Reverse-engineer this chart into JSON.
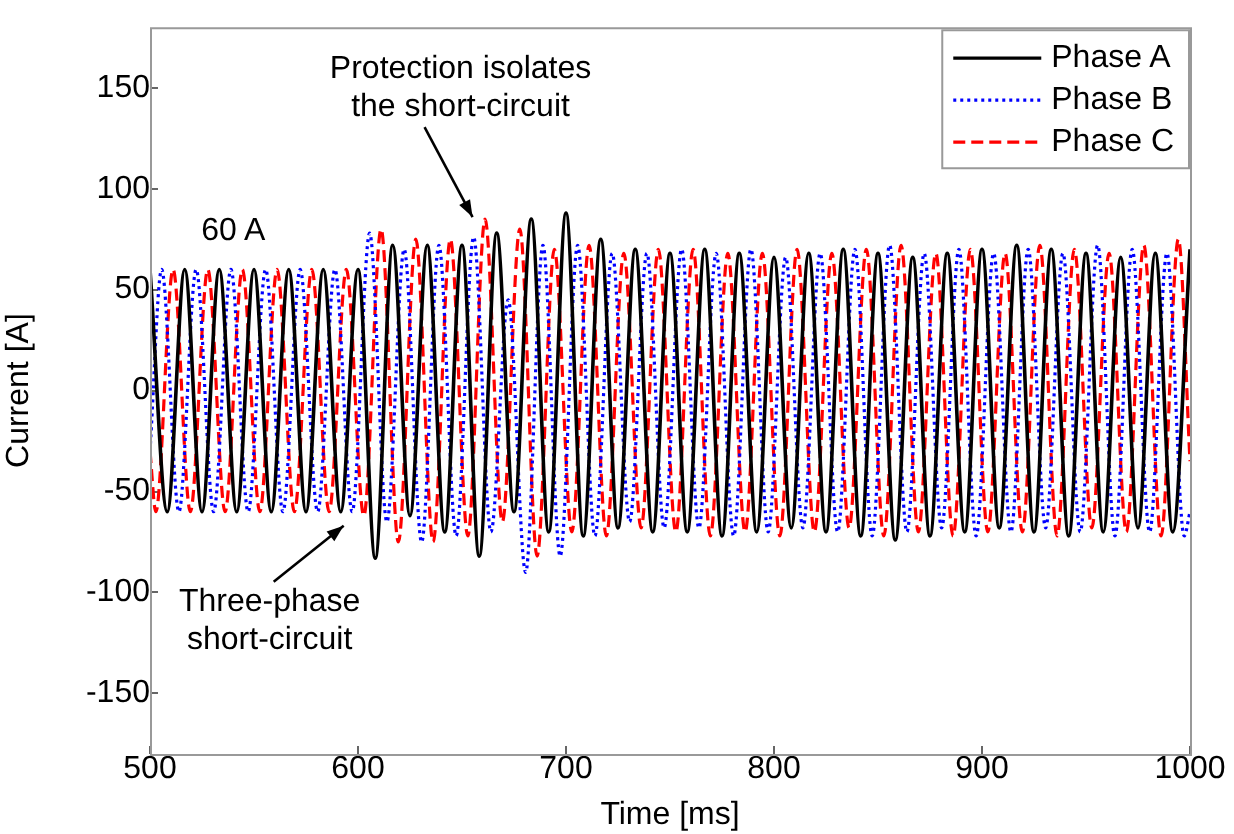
{
  "chart_data": {
    "type": "line",
    "xlabel": "Time [ms]",
    "ylabel": "Current [A]",
    "xlim": [
      500,
      1000
    ],
    "xticks": [
      500,
      600,
      700,
      800,
      900,
      1000
    ],
    "ylim": [
      -180,
      180
    ],
    "yticks": [
      -150,
      -100,
      -50,
      0,
      50,
      100,
      150
    ],
    "grid": false,
    "legend": "top right",
    "marker": "none",
    "annotations": [
      "60 A",
      {
        "text": "Protection isolates\nthe short-circuit",
        "x": 657,
        "y": 82
      },
      {
        "text": "Three-phase\nshort-circuit",
        "x": 596,
        "y": -63
      }
    ],
    "series": [
      {
        "name": "Phase A",
        "color": "#000000",
        "line_style": "solid",
        "x": [
          500,
          508.3,
          516.7,
          525,
          533.3,
          541.7,
          550,
          558.3,
          566.7,
          575,
          583.3,
          591.7,
          600,
          608.3,
          616.7,
          625,
          633.3,
          641.7,
          650,
          658.3,
          666.7,
          675,
          683.3,
          691.7,
          700,
          708.3,
          716.7,
          725,
          733.3,
          741.7,
          750,
          758.3,
          766.7,
          775,
          783.3,
          791.7,
          800,
          808.3,
          816.7,
          825,
          833.3,
          841.7,
          850,
          858.3,
          866.7,
          875,
          883.3,
          891.7,
          900,
          908.3,
          916.7,
          925,
          933.3,
          941.7,
          950,
          958.3,
          966.7,
          975,
          983.3,
          991.7,
          1000
        ],
        "values": [
          60,
          -60,
          60,
          -60,
          60,
          -60,
          60,
          -60,
          60,
          -60,
          60,
          -60,
          60,
          -83,
          72,
          -62,
          72,
          -70,
          72,
          -82,
          78,
          -60,
          85,
          -70,
          88,
          -72,
          75,
          -68,
          70,
          -70,
          68,
          -70,
          70,
          -72,
          68,
          -70,
          66,
          -68,
          68,
          -70,
          70,
          -72,
          68,
          -74,
          66,
          -72,
          68,
          -70,
          70,
          -68,
          72,
          -70,
          70,
          -72,
          68,
          -70,
          66,
          -68,
          68,
          -70,
          70
        ]
      },
      {
        "name": "Phase B",
        "color": "#0000ff",
        "line_style": "dotted",
        "x": [
          500,
          505.6,
          513.9,
          522.2,
          530.6,
          538.9,
          547.2,
          555.6,
          563.9,
          572.2,
          580.6,
          588.9,
          597.2,
          605.6,
          613.9,
          622.2,
          630.6,
          638.9,
          647.2,
          655.6,
          663.9,
          672.2,
          680.6,
          688.9,
          697.2,
          705.6,
          713.9,
          722.2,
          730.6,
          738.9,
          747.2,
          755.6,
          763.9,
          772.2,
          780.6,
          788.9,
          797.2,
          805.6,
          813.9,
          822.2,
          830.6,
          838.9,
          847.2,
          855.6,
          863.9,
          872.2,
          880.6,
          888.9,
          897.2,
          905.6,
          913.9,
          922.2,
          930.6,
          938.9,
          947.2,
          955.6,
          963.9,
          972.2,
          980.6,
          988.9,
          997.2,
          1000
        ],
        "values": [
          -30,
          60,
          -60,
          60,
          -60,
          60,
          -60,
          60,
          -60,
          60,
          -60,
          60,
          -60,
          78,
          -65,
          70,
          -75,
          72,
          -72,
          76,
          -70,
          45,
          -90,
          72,
          -82,
          72,
          -72,
          68,
          -65,
          68,
          -68,
          70,
          -68,
          68,
          -72,
          70,
          -70,
          66,
          -68,
          68,
          -70,
          70,
          -72,
          72,
          -70,
          68,
          -68,
          70,
          -72,
          68,
          -70,
          70,
          -68,
          68,
          -70,
          72,
          -72,
          70,
          -70,
          68,
          -72,
          -60
        ]
      },
      {
        "name": "Phase C",
        "color": "#ff0000",
        "line_style": "dashed",
        "x": [
          500,
          502.8,
          511.1,
          519.4,
          527.8,
          536.1,
          544.4,
          552.8,
          561.1,
          569.4,
          577.8,
          586.1,
          594.4,
          602.8,
          611.1,
          619.4,
          627.8,
          636.1,
          644.4,
          652.8,
          661.1,
          669.4,
          677.8,
          686.1,
          694.4,
          702.8,
          711.1,
          719.4,
          727.8,
          736.1,
          744.4,
          752.8,
          761.1,
          769.4,
          777.8,
          786.1,
          794.4,
          802.8,
          811.1,
          819.4,
          827.8,
          836.1,
          844.4,
          852.8,
          861.1,
          869.4,
          877.8,
          886.1,
          894.4,
          902.8,
          911.1,
          919.4,
          927.8,
          936.1,
          944.4,
          952.8,
          961.1,
          969.4,
          977.8,
          986.1,
          994.4,
          1000
        ],
        "values": [
          -30,
          -60,
          60,
          -60,
          60,
          -60,
          60,
          -60,
          60,
          -60,
          60,
          -60,
          60,
          -62,
          80,
          -75,
          75,
          -75,
          75,
          -72,
          85,
          -65,
          80,
          -82,
          70,
          -70,
          72,
          -72,
          68,
          -68,
          70,
          -70,
          70,
          -72,
          68,
          -70,
          68,
          -72,
          70,
          -70,
          68,
          -68,
          70,
          -72,
          72,
          -70,
          68,
          -72,
          70,
          -70,
          68,
          -70,
          72,
          -72,
          70,
          -68,
          68,
          -70,
          72,
          -72,
          75,
          -35
        ]
      }
    ]
  }
}
